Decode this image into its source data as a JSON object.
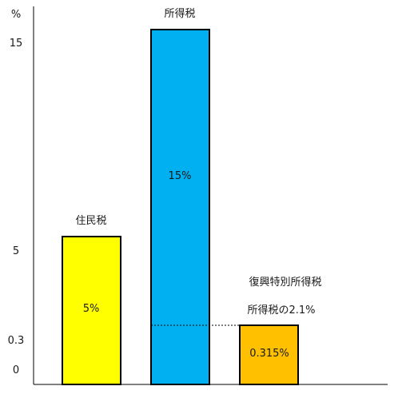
{
  "chart_data": {
    "type": "bar",
    "ylabel": "%",
    "yticks": [
      "15",
      "5",
      "0.3",
      "0"
    ],
    "ytick_values": [
      15,
      5,
      0.3,
      0
    ],
    "bars": [
      {
        "category_label": "住民税",
        "value": 5,
        "value_label": "5%",
        "color": "#ffff00"
      },
      {
        "category_label": "所得税",
        "value": 15,
        "value_label": "15%",
        "color": "#00b0f0"
      },
      {
        "category_label": "復興特別所得税",
        "sublabel": "所得税の2.1%",
        "value": 0.315,
        "value_label": "0.315%",
        "color": "#ffc000"
      }
    ]
  }
}
